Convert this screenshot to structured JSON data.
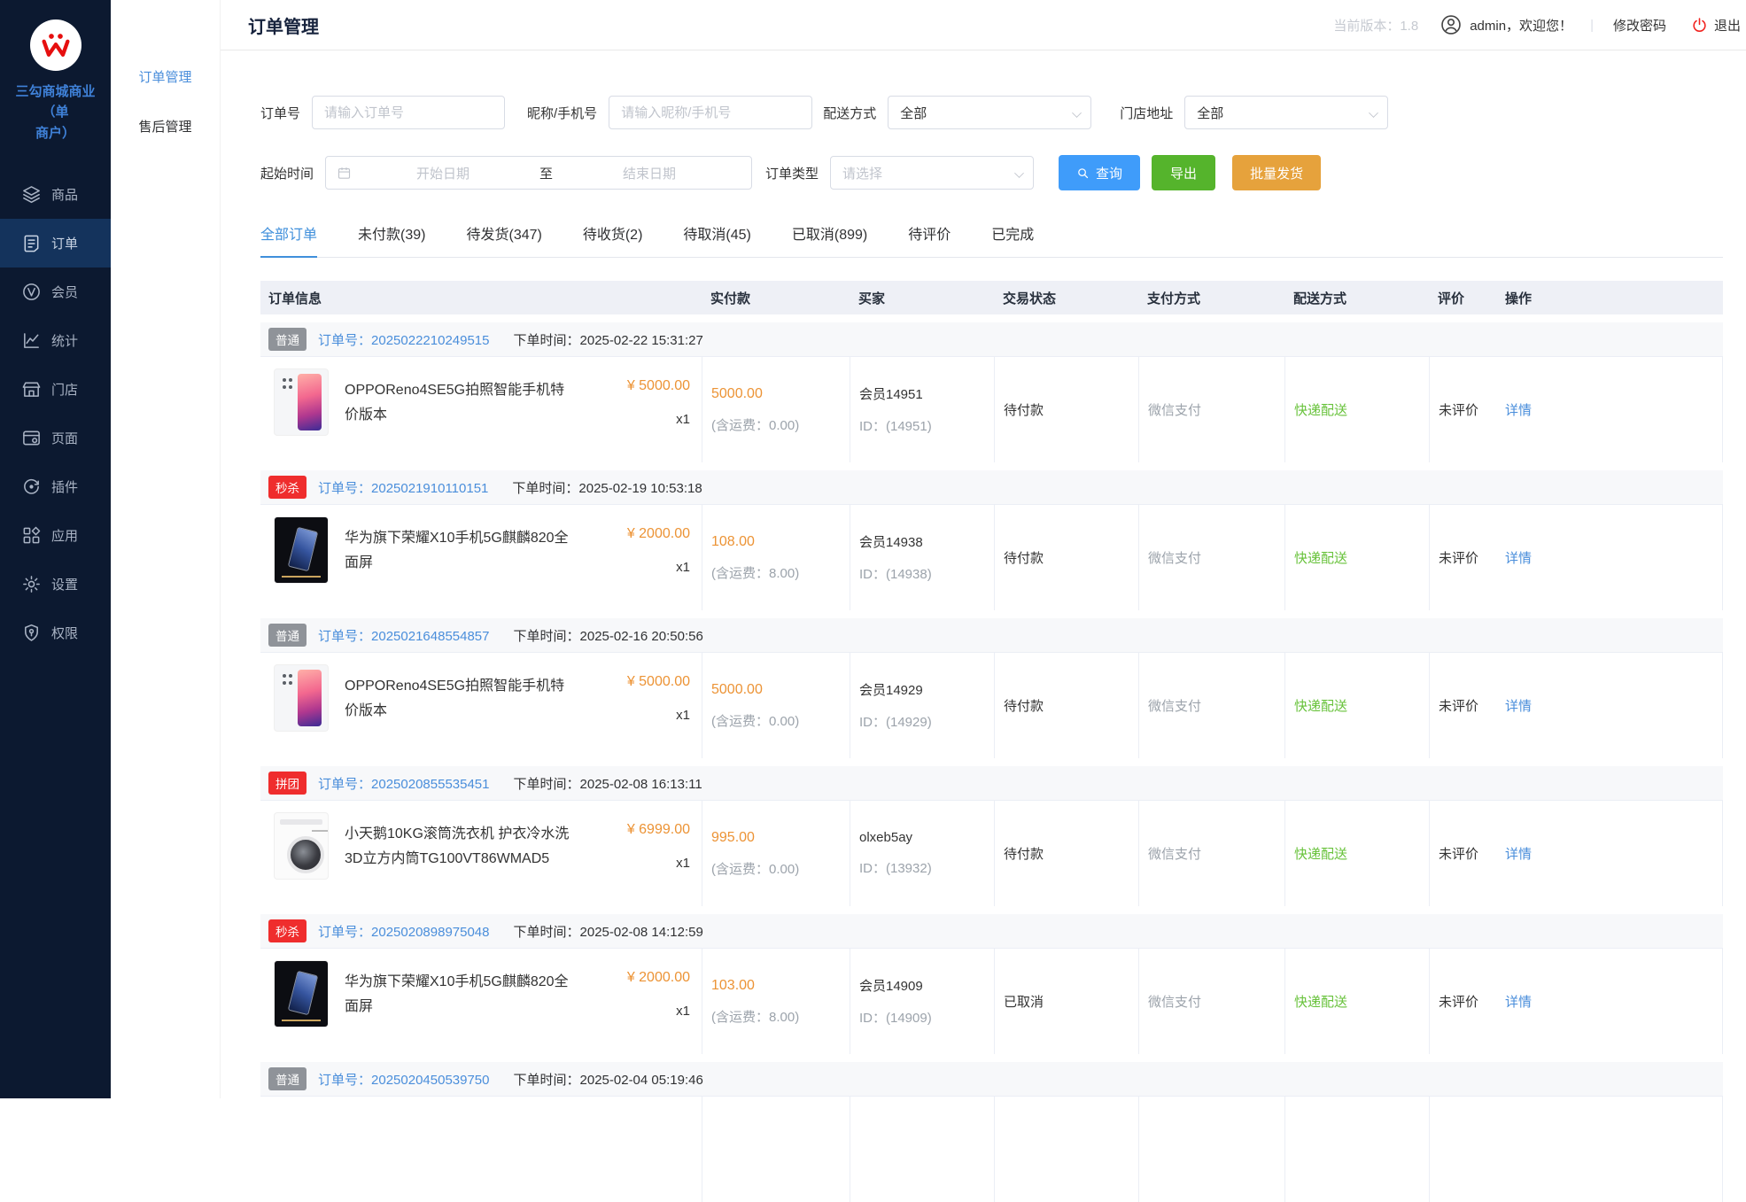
{
  "colors": {
    "accent": "#3f9cfa",
    "success": "#55b42c",
    "warning": "#e6a23c",
    "price_orange": "#ec9335",
    "badge_red": "#ef2d2d",
    "badge_gray": "#8f9399",
    "link_blue": "#4a8edb",
    "sidebar_bg": "#0c1930"
  },
  "sidebar": {
    "brand_line1": "三勾商城商业（单",
    "brand_line2": "商户）",
    "items": [
      {
        "key": "goods",
        "icon": "layers-icon",
        "label": "商品",
        "active": false
      },
      {
        "key": "orders",
        "icon": "order-icon",
        "label": "订单",
        "active": true
      },
      {
        "key": "members",
        "icon": "member-icon",
        "label": "会员",
        "active": false
      },
      {
        "key": "stats",
        "icon": "stats-icon",
        "label": "统计",
        "active": false
      },
      {
        "key": "stores",
        "icon": "store-icon",
        "label": "门店",
        "active": false
      },
      {
        "key": "pages",
        "icon": "page-icon",
        "label": "页面",
        "active": false
      },
      {
        "key": "plugins",
        "icon": "plugin-icon",
        "label": "插件",
        "active": false
      },
      {
        "key": "apps",
        "icon": "apps-icon",
        "label": "应用",
        "active": false
      },
      {
        "key": "settings",
        "icon": "gear-icon",
        "label": "设置",
        "active": false
      },
      {
        "key": "permissions",
        "icon": "shield-icon",
        "label": "权限",
        "active": false
      }
    ]
  },
  "submenu": {
    "items": [
      {
        "key": "order-management",
        "label": "订单管理",
        "active": true
      },
      {
        "key": "aftersales-management",
        "label": "售后管理",
        "active": false
      }
    ]
  },
  "header": {
    "title": "订单管理",
    "version": "当前版本：1.8",
    "welcome": "admin，欢迎您！",
    "divider": "|",
    "change_password": "修改密码",
    "logout": "退出"
  },
  "filters": {
    "order_no_label": "订单号",
    "order_no_placeholder": "请输入订单号",
    "nickname_label": "昵称/手机号",
    "nickname_placeholder": "请输入昵称/手机号",
    "delivery_label": "配送方式",
    "delivery_value": "全部",
    "store_label": "门店地址",
    "store_value": "全部",
    "time_label": "起始时间",
    "start_placeholder": "开始日期",
    "range_separator": "至",
    "end_placeholder": "结束日期",
    "type_label": "订单类型",
    "type_placeholder": "请选择",
    "search_button": "查询",
    "export_button": "导出",
    "batch_button": "批量发货"
  },
  "tabs": [
    {
      "key": "all",
      "label": "全部订单",
      "active": true
    },
    {
      "key": "unpaid",
      "label": "未付款(39)",
      "active": false
    },
    {
      "key": "to-ship",
      "label": "待发货(347)",
      "active": false
    },
    {
      "key": "to-receive",
      "label": "待收货(2)",
      "active": false
    },
    {
      "key": "to-cancel",
      "label": "待取消(45)",
      "active": false
    },
    {
      "key": "cancelled",
      "label": "已取消(899)",
      "active": false
    },
    {
      "key": "to-review",
      "label": "待评价",
      "active": false
    },
    {
      "key": "completed",
      "label": "已完成",
      "active": false
    }
  ],
  "table": {
    "columns": [
      "订单信息",
      "实付款",
      "买家",
      "交易状态",
      "支付方式",
      "配送方式",
      "评价",
      "操作"
    ],
    "order_no_label": "订单号：",
    "time_label": "下单时间：",
    "orders": [
      {
        "badge": "普通",
        "badge_type": "gray",
        "order_no": "2025022210249515",
        "time": "2025-02-22 15:31:27",
        "product": {
          "name": "OPPOReno4SE5G拍照智能手机特价版本",
          "image": "oppo",
          "price": "¥ 5000.00",
          "qty": "x1"
        },
        "paid": {
          "amount": "5000.00",
          "freight": "(含运费：0.00)"
        },
        "buyer": {
          "name": "会员14951",
          "id": "ID：(14951)"
        },
        "status": "待付款",
        "payment": "微信支付",
        "delivery": "快递配送",
        "review": "未评价",
        "action": "详情"
      },
      {
        "badge": "秒杀",
        "badge_type": "red",
        "order_no": "2025021910110151",
        "time": "2025-02-19 10:53:18",
        "product": {
          "name": "华为旗下荣耀X10手机5G麒麟820全面屏",
          "image": "honor",
          "price": "¥ 2000.00",
          "qty": "x1"
        },
        "paid": {
          "amount": "108.00",
          "freight": "(含运费：8.00)"
        },
        "buyer": {
          "name": "会员14938",
          "id": "ID：(14938)"
        },
        "status": "待付款",
        "payment": "微信支付",
        "delivery": "快递配送",
        "review": "未评价",
        "action": "详情"
      },
      {
        "badge": "普通",
        "badge_type": "gray",
        "order_no": "2025021648554857",
        "time": "2025-02-16 20:50:56",
        "product": {
          "name": "OPPOReno4SE5G拍照智能手机特价版本",
          "image": "oppo",
          "price": "¥ 5000.00",
          "qty": "x1"
        },
        "paid": {
          "amount": "5000.00",
          "freight": "(含运费：0.00)"
        },
        "buyer": {
          "name": "会员14929",
          "id": "ID：(14929)"
        },
        "status": "待付款",
        "payment": "微信支付",
        "delivery": "快递配送",
        "review": "未评价",
        "action": "详情"
      },
      {
        "badge": "拼团",
        "badge_type": "red",
        "order_no": "2025020855535451",
        "time": "2025-02-08 16:13:11",
        "product": {
          "name": "小天鹅10KG滚筒洗衣机 护衣冷水洗 3D立方内筒TG100VT86WMAD5",
          "image": "washer",
          "price": "¥ 6999.00",
          "qty": "x1"
        },
        "paid": {
          "amount": "995.00",
          "freight": "(含运费：0.00)"
        },
        "buyer": {
          "name": "olxeb5ay",
          "id": "ID：(13932)"
        },
        "status": "待付款",
        "payment": "微信支付",
        "delivery": "快递配送",
        "review": "未评价",
        "action": "详情"
      },
      {
        "badge": "秒杀",
        "badge_type": "red",
        "order_no": "2025020898975048",
        "time": "2025-02-08 14:12:59",
        "product": {
          "name": "华为旗下荣耀X10手机5G麒麟820全面屏",
          "image": "honor",
          "price": "¥ 2000.00",
          "qty": "x1"
        },
        "paid": {
          "amount": "103.00",
          "freight": "(含运费：8.00)"
        },
        "buyer": {
          "name": "会员14909",
          "id": "ID：(14909)"
        },
        "status": "已取消",
        "payment": "微信支付",
        "delivery": "快递配送",
        "review": "未评价",
        "action": "详情"
      },
      {
        "badge": "普通",
        "badge_type": "gray",
        "order_no": "2025020450539750",
        "time": "2025-02-04 05:19:46"
      }
    ]
  }
}
